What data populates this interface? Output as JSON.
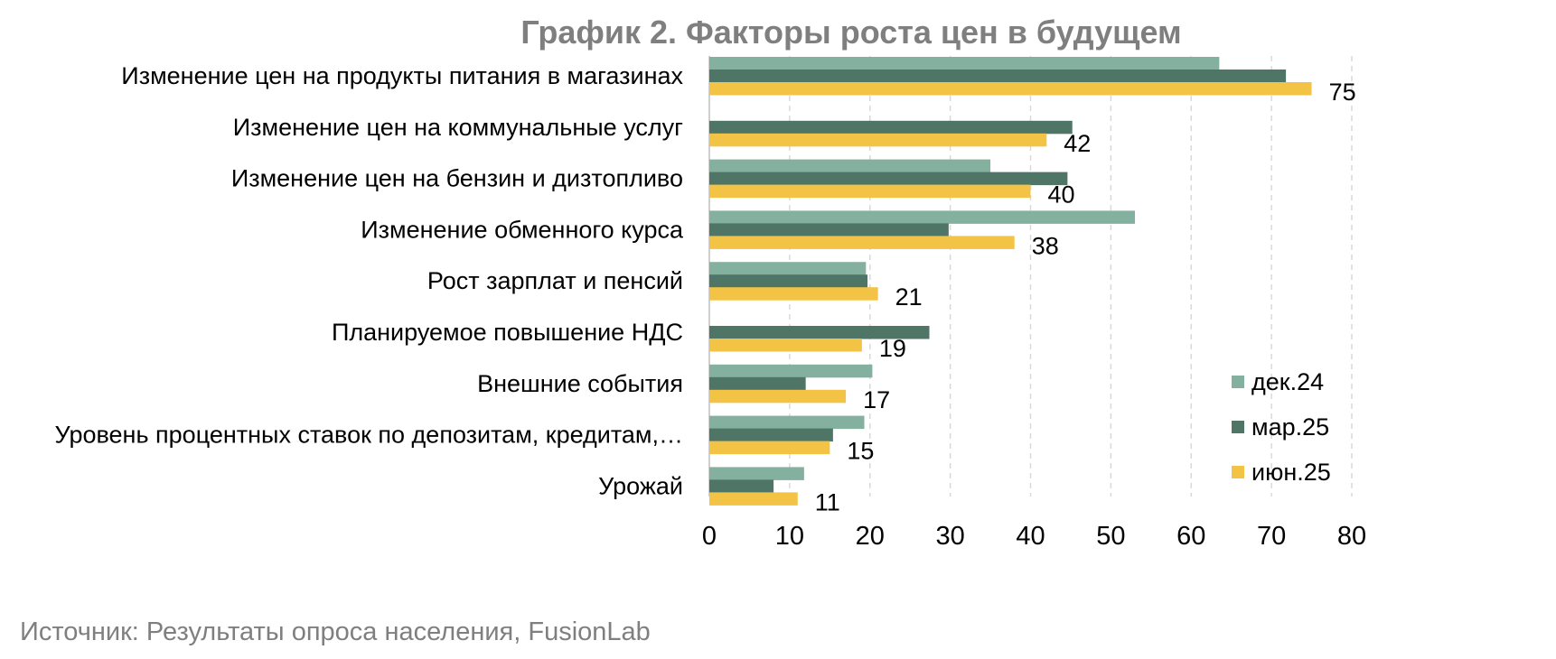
{
  "chart_data": {
    "type": "bar",
    "orientation": "horizontal",
    "title": "График 2. Факторы роста цен в будущем",
    "categories": [
      "Изменение цен на продукты питания в магазинах",
      "Изменение цен на коммунальные услуг",
      "Изменение цен на бензин и дизтопливо",
      "Изменение обменного курса",
      "Рост зарплат и пенсий",
      "Планируемое повышение НДС",
      "Внешние события",
      "Уровень процентных ставок по депозитам, кредитам,…",
      "Урожай"
    ],
    "series": [
      {
        "name": "дек.24",
        "color": "#84b0a0",
        "values": [
          63.5,
          0,
          35,
          53,
          19.5,
          0,
          20.3,
          19.3,
          11.8
        ]
      },
      {
        "name": "мар.25",
        "color": "#4e7565",
        "values": [
          71.8,
          45.2,
          44.6,
          29.8,
          19.7,
          27.4,
          12,
          15.4,
          8
        ]
      },
      {
        "name": "июн.25",
        "color": "#f2c344",
        "values": [
          75,
          42,
          40,
          38,
          21,
          19,
          17,
          15,
          11
        ]
      }
    ],
    "data_labels": [
      "75",
      "42",
      "40",
      "38",
      "21",
      "19",
      "17",
      "15",
      "11"
    ],
    "xlim": [
      0,
      80
    ],
    "x_ticks": [
      0,
      10,
      20,
      30,
      40,
      50,
      60,
      70,
      80
    ],
    "grid": true,
    "legend_position": "bottom-right"
  },
  "footer": {
    "source": "Источник: Результаты опроса населения, FusionLab"
  }
}
